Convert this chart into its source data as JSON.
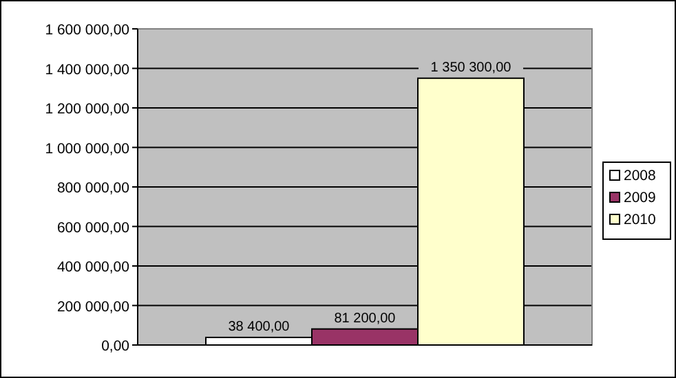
{
  "chart_data": {
    "type": "bar",
    "categories": [
      null
    ],
    "series": [
      {
        "name": "2008",
        "color": "#ffffff",
        "values": [
          38400
        ]
      },
      {
        "name": "2009",
        "color": "#993366",
        "values": [
          81200
        ]
      },
      {
        "name": "2010",
        "color": "#ffffcc",
        "values": [
          1350300
        ]
      }
    ],
    "value_labels": [
      [
        "38 400,00"
      ],
      [
        "81 200,00"
      ],
      [
        "1 350 300,00"
      ]
    ],
    "ylim": [
      0,
      1600000
    ],
    "yticks": [
      {
        "value": 0,
        "label": "0,00"
      },
      {
        "value": 200000,
        "label": "200 000,00"
      },
      {
        "value": 400000,
        "label": "400 000,00"
      },
      {
        "value": 600000,
        "label": "600 000,00"
      },
      {
        "value": 800000,
        "label": "800 000,00"
      },
      {
        "value": 1000000,
        "label": "1 000 000,00"
      },
      {
        "value": 1200000,
        "label": "1 200 000,00"
      },
      {
        "value": 1400000,
        "label": "1 400 000,00"
      },
      {
        "value": 1600000,
        "label": "1 600 000,00"
      }
    ],
    "grid": "y",
    "legend": "right"
  }
}
